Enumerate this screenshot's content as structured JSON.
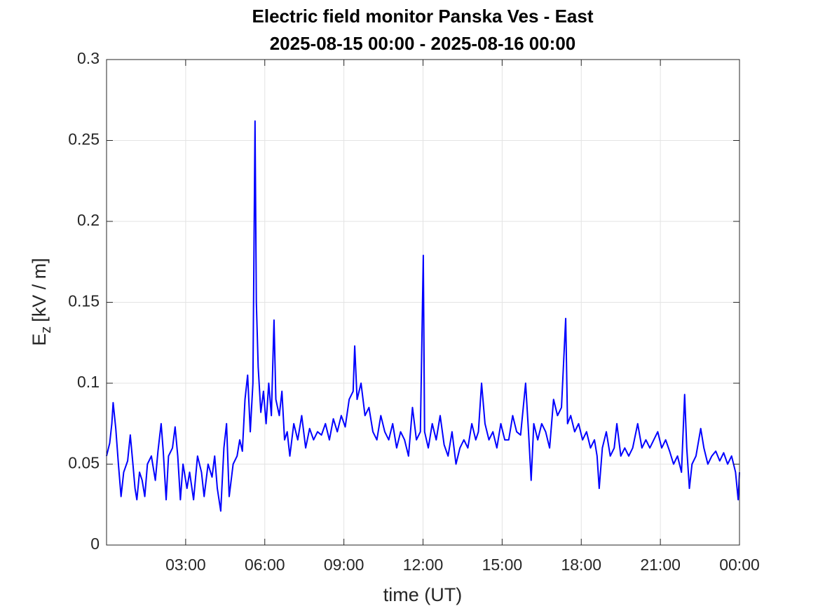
{
  "chart_data": {
    "type": "line",
    "title": "Electric field monitor Panska Ves - East",
    "subtitle": "2025-08-15 00:00 - 2025-08-16 00:00",
    "xlabel": "time (UT)",
    "ylabel": {
      "main": "E",
      "sub": "z",
      "unit": "[kV / m]"
    },
    "color": "#0000ff",
    "grid": true,
    "xlim": [
      0,
      24
    ],
    "xticks": [
      {
        "value": 3,
        "label": "03:00"
      },
      {
        "value": 6,
        "label": "06:00"
      },
      {
        "value": 9,
        "label": "09:00"
      },
      {
        "value": 12,
        "label": "12:00"
      },
      {
        "value": 15,
        "label": "15:00"
      },
      {
        "value": 18,
        "label": "18:00"
      },
      {
        "value": 21,
        "label": "21:00"
      },
      {
        "value": 24,
        "label": "00:00"
      }
    ],
    "ylim": [
      0,
      0.3
    ],
    "yticks": [
      0,
      0.05,
      0.1,
      0.15,
      0.2,
      0.25,
      0.3
    ],
    "x": [
      0.0,
      0.12,
      0.2,
      0.25,
      0.35,
      0.45,
      0.55,
      0.65,
      0.8,
      0.9,
      1.0,
      1.08,
      1.15,
      1.25,
      1.35,
      1.45,
      1.55,
      1.7,
      1.85,
      1.95,
      2.07,
      2.15,
      2.26,
      2.35,
      2.5,
      2.6,
      2.7,
      2.8,
      2.9,
      3.05,
      3.15,
      3.3,
      3.45,
      3.6,
      3.7,
      3.85,
      4.0,
      4.1,
      4.2,
      4.33,
      4.45,
      4.55,
      4.65,
      4.8,
      4.95,
      5.05,
      5.15,
      5.25,
      5.35,
      5.45,
      5.55,
      5.63,
      5.68,
      5.75,
      5.85,
      5.95,
      6.05,
      6.15,
      6.25,
      6.35,
      6.42,
      6.55,
      6.65,
      6.75,
      6.85,
      6.95,
      7.1,
      7.25,
      7.4,
      7.55,
      7.7,
      7.85,
      8.0,
      8.15,
      8.3,
      8.45,
      8.6,
      8.75,
      8.9,
      9.05,
      9.2,
      9.35,
      9.41,
      9.5,
      9.65,
      9.8,
      9.95,
      10.1,
      10.25,
      10.4,
      10.55,
      10.7,
      10.85,
      11.0,
      11.15,
      11.3,
      11.45,
      11.6,
      11.75,
      11.9,
      12.01,
      12.06,
      12.2,
      12.35,
      12.5,
      12.65,
      12.8,
      12.95,
      13.1,
      13.25,
      13.4,
      13.55,
      13.7,
      13.85,
      14.0,
      14.1,
      14.22,
      14.35,
      14.5,
      14.65,
      14.8,
      14.95,
      15.1,
      15.25,
      15.4,
      15.55,
      15.7,
      15.89,
      16.0,
      16.1,
      16.2,
      16.35,
      16.5,
      16.65,
      16.8,
      16.95,
      17.1,
      17.25,
      17.41,
      17.48,
      17.6,
      17.75,
      17.9,
      18.05,
      18.2,
      18.35,
      18.5,
      18.6,
      18.68,
      18.8,
      18.95,
      19.1,
      19.25,
      19.35,
      19.5,
      19.65,
      19.8,
      19.95,
      20.14,
      20.3,
      20.45,
      20.6,
      20.75,
      20.9,
      21.05,
      21.2,
      21.35,
      21.5,
      21.65,
      21.8,
      21.92,
      22.0,
      22.1,
      22.2,
      22.35,
      22.53,
      22.65,
      22.8,
      22.95,
      23.1,
      23.25,
      23.4,
      23.55,
      23.7,
      23.85,
      23.95,
      24.0
    ],
    "values": [
      0.055,
      0.063,
      0.075,
      0.088,
      0.072,
      0.05,
      0.03,
      0.045,
      0.052,
      0.068,
      0.05,
      0.035,
      0.028,
      0.045,
      0.04,
      0.03,
      0.05,
      0.055,
      0.04,
      0.058,
      0.075,
      0.058,
      0.028,
      0.055,
      0.06,
      0.073,
      0.055,
      0.028,
      0.05,
      0.035,
      0.045,
      0.028,
      0.055,
      0.045,
      0.03,
      0.05,
      0.042,
      0.055,
      0.035,
      0.021,
      0.06,
      0.075,
      0.03,
      0.05,
      0.055,
      0.065,
      0.058,
      0.09,
      0.105,
      0.07,
      0.1,
      0.262,
      0.15,
      0.11,
      0.082,
      0.095,
      0.075,
      0.1,
      0.08,
      0.139,
      0.09,
      0.08,
      0.095,
      0.065,
      0.07,
      0.055,
      0.075,
      0.065,
      0.08,
      0.06,
      0.072,
      0.065,
      0.07,
      0.068,
      0.075,
      0.065,
      0.078,
      0.07,
      0.08,
      0.073,
      0.09,
      0.095,
      0.123,
      0.09,
      0.1,
      0.08,
      0.085,
      0.07,
      0.065,
      0.08,
      0.07,
      0.065,
      0.075,
      0.06,
      0.07,
      0.065,
      0.055,
      0.085,
      0.065,
      0.07,
      0.179,
      0.07,
      0.06,
      0.075,
      0.065,
      0.08,
      0.062,
      0.055,
      0.07,
      0.05,
      0.06,
      0.065,
      0.06,
      0.075,
      0.065,
      0.07,
      0.1,
      0.075,
      0.065,
      0.07,
      0.06,
      0.075,
      0.065,
      0.065,
      0.08,
      0.07,
      0.068,
      0.1,
      0.07,
      0.04,
      0.075,
      0.065,
      0.075,
      0.07,
      0.06,
      0.09,
      0.08,
      0.085,
      0.14,
      0.075,
      0.08,
      0.07,
      0.075,
      0.065,
      0.07,
      0.06,
      0.065,
      0.055,
      0.035,
      0.06,
      0.07,
      0.055,
      0.06,
      0.075,
      0.055,
      0.06,
      0.055,
      0.06,
      0.075,
      0.06,
      0.065,
      0.06,
      0.065,
      0.07,
      0.06,
      0.065,
      0.058,
      0.05,
      0.055,
      0.045,
      0.093,
      0.06,
      0.035,
      0.05,
      0.055,
      0.072,
      0.06,
      0.05,
      0.055,
      0.058,
      0.052,
      0.057,
      0.05,
      0.055,
      0.045,
      0.028,
      0.045
    ]
  }
}
